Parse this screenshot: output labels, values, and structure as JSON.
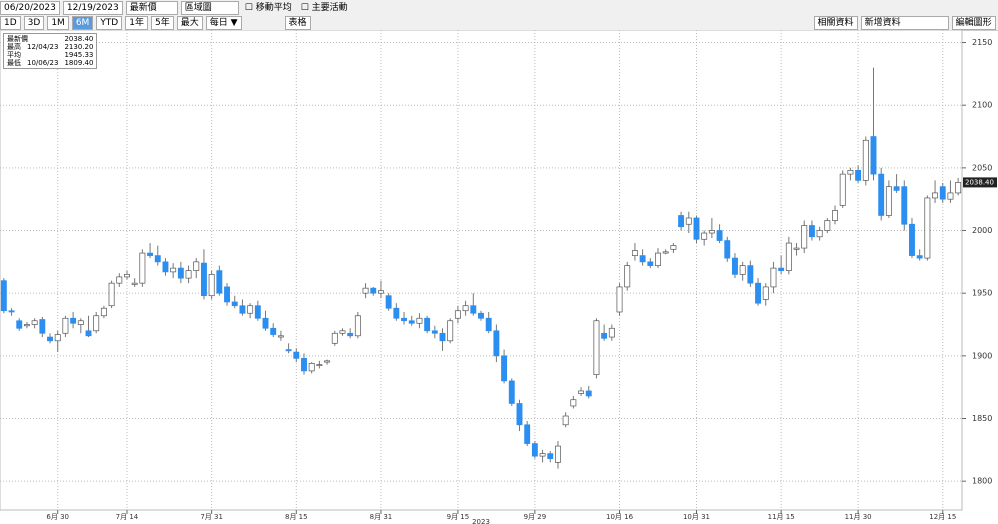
{
  "toolbar": {
    "start_date": "06/20/2023",
    "end_date": "12/19/2023",
    "price_type": "最新價",
    "chart_style": "區域圖",
    "moving_average": "移動平均",
    "main_events": "主要活動",
    "periods": [
      "1D",
      "3D",
      "1M",
      "6M",
      "YTD",
      "1年",
      "5年",
      "最大"
    ],
    "frequency": "每日 ▼",
    "table": "表格",
    "related": "相關資料",
    "add_data": "新增資料",
    "edit_chart": "編輯圖形"
  },
  "chart_data": {
    "type": "candlestick",
    "info_box": [
      [
        "最新價",
        "",
        "2038.40"
      ],
      [
        "最高",
        "12/04/23",
        "2130.20"
      ],
      [
        "平均",
        "",
        "1945.33"
      ],
      [
        "最低",
        "10/06/23",
        "1809.40"
      ]
    ],
    "last_price_label": "2038.40",
    "year_label": "2023",
    "up_color": "#ffffff",
    "down_color": "#2b8ef0",
    "edge_color": "#555555",
    "xlim": [
      -0.5,
      124.5
    ],
    "xticks": [
      {
        "value": 7,
        "label": "6月 30"
      },
      {
        "value": 16,
        "label": "7月 14"
      },
      {
        "value": 27,
        "label": "7月 31"
      },
      {
        "value": 38,
        "label": "8月 15"
      },
      {
        "value": 49,
        "label": "8月 31"
      },
      {
        "value": 59,
        "label": "9月 15"
      },
      {
        "value": 69,
        "label": "9月 29"
      },
      {
        "value": 80,
        "label": "10月 16"
      },
      {
        "value": 90,
        "label": "10月 31"
      },
      {
        "value": 101,
        "label": "11月 15"
      },
      {
        "value": 111,
        "label": "11月 30"
      },
      {
        "value": 122,
        "label": "12月 15"
      }
    ],
    "ylim": [
      1777,
      2160
    ],
    "yticks": [
      1800,
      1850,
      1900,
      1950,
      2000,
      2050,
      2100,
      2150
    ],
    "grid": true,
    "open": [
      1960,
      1936,
      1928,
      1924,
      1925,
      1929,
      1915,
      1912,
      1918,
      1930,
      1925,
      1920,
      1920,
      1932,
      1940,
      1958,
      1963,
      1957,
      1958,
      1982,
      1980,
      1975,
      1967,
      1970,
      1962,
      1968,
      1974,
      1948,
      1968,
      1955,
      1943,
      1940,
      1934,
      1940,
      1930,
      1922,
      1915,
      1905,
      1903,
      1898,
      1888,
      1893,
      1895,
      1910,
      1918,
      1918,
      1916,
      1950,
      1954,
      1950,
      1948,
      1938,
      1930,
      1928,
      1926,
      1930,
      1920,
      1918,
      1912,
      1930,
      1936,
      1940,
      1934,
      1930,
      1920,
      1900,
      1880,
      1862,
      1845,
      1830,
      1820,
      1822,
      1815,
      1845,
      1860,
      1870,
      1872,
      1885,
      1918,
      1915,
      1935,
      1955,
      1980,
      1980,
      1975,
      1972,
      1982,
      1985,
      2012,
      2005,
      2010,
      1993,
      1998,
      2000,
      1992,
      1978,
      1965,
      1972,
      1958,
      1945,
      1955,
      1970,
      1968,
      1985,
      1986,
      2004,
      1995,
      2000,
      2008,
      2020,
      2045,
      2048,
      2040,
      2075,
      2045,
      2012,
      2035,
      2035,
      2005,
      1980,
      1978,
      2026,
      2035,
      2025,
      2030
    ],
    "high": [
      1962,
      1938,
      1930,
      1927,
      1930,
      1931,
      1918,
      1920,
      1932,
      1935,
      1930,
      1932,
      1935,
      1940,
      1960,
      1966,
      1968,
      1962,
      1985,
      1990,
      1988,
      1978,
      1974,
      1975,
      1972,
      1978,
      1985,
      1968,
      1972,
      1958,
      1948,
      1945,
      1942,
      1944,
      1936,
      1926,
      1920,
      1910,
      1906,
      1902,
      1895,
      1896,
      1897,
      1920,
      1922,
      1922,
      1935,
      1958,
      1955,
      1960,
      1950,
      1942,
      1935,
      1932,
      1934,
      1932,
      1924,
      1922,
      1930,
      1940,
      1944,
      1950,
      1936,
      1935,
      1925,
      1905,
      1882,
      1865,
      1848,
      1832,
      1825,
      1824,
      1832,
      1855,
      1868,
      1875,
      1876,
      1930,
      1925,
      1925,
      1958,
      1975,
      1990,
      1985,
      1978,
      1986,
      1985,
      1990,
      2015,
      2015,
      2012,
      2000,
      2010,
      2005,
      1995,
      1982,
      1975,
      1976,
      1962,
      1958,
      1975,
      1980,
      1995,
      1990,
      2008,
      2008,
      2003,
      2010,
      2020,
      2048,
      2050,
      2052,
      2075,
      2130,
      2050,
      2040,
      2045,
      2040,
      2010,
      1985,
      2028,
      2040,
      2038,
      2040,
      2042
    ],
    "low": [
      1934,
      1932,
      1920,
      1922,
      1922,
      1915,
      1910,
      1903,
      1915,
      1922,
      1918,
      1915,
      1918,
      1930,
      1938,
      1955,
      1961,
      1955,
      1955,
      1978,
      1972,
      1964,
      1962,
      1958,
      1958,
      1962,
      1945,
      1945,
      1948,
      1940,
      1938,
      1932,
      1930,
      1928,
      1920,
      1915,
      1912,
      1902,
      1895,
      1885,
      1886,
      1890,
      1893,
      1908,
      1916,
      1914,
      1914,
      1946,
      1948,
      1946,
      1936,
      1928,
      1925,
      1924,
      1922,
      1918,
      1914,
      1904,
      1910,
      1926,
      1932,
      1932,
      1928,
      1918,
      1895,
      1878,
      1860,
      1840,
      1828,
      1818,
      1815,
      1815,
      1810,
      1843,
      1858,
      1868,
      1866,
      1882,
      1912,
      1912,
      1932,
      1952,
      1976,
      1972,
      1970,
      1970,
      1981,
      1982,
      2000,
      1998,
      1990,
      1988,
      1994,
      1990,
      1975,
      1962,
      1960,
      1955,
      1940,
      1940,
      1950,
      1965,
      1965,
      1980,
      1982,
      1992,
      1992,
      1998,
      2005,
      2018,
      2040,
      2038,
      2036,
      2040,
      2008,
      2010,
      2030,
      2000,
      1978,
      1976,
      1976,
      2022,
      2022,
      2022,
      2028
    ],
    "close": [
      1936,
      1935,
      1922,
      1925,
      1928,
      1918,
      1912,
      1917,
      1930,
      1926,
      1928,
      1916,
      1932,
      1938,
      1958,
      1963,
      1965,
      1958,
      1982,
      1980,
      1975,
      1967,
      1970,
      1962,
      1968,
      1975,
      1948,
      1965,
      1950,
      1943,
      1940,
      1934,
      1940,
      1930,
      1922,
      1917,
      1916,
      1904,
      1898,
      1888,
      1894,
      1893,
      1896,
      1918,
      1920,
      1916,
      1932,
      1954,
      1950,
      1952,
      1938,
      1930,
      1928,
      1926,
      1930,
      1920,
      1918,
      1912,
      1928,
      1936,
      1940,
      1934,
      1930,
      1920,
      1900,
      1880,
      1862,
      1845,
      1830,
      1820,
      1822,
      1818,
      1828,
      1852,
      1865,
      1872,
      1868,
      1928,
      1914,
      1922,
      1955,
      1972,
      1984,
      1975,
      1972,
      1982,
      1983,
      1988,
      2003,
      2010,
      1993,
      1998,
      2000,
      1992,
      1978,
      1965,
      1972,
      1958,
      1942,
      1955,
      1970,
      1968,
      1990,
      1986,
      2004,
      1995,
      2000,
      2008,
      2016,
      2045,
      2048,
      2040,
      2072,
      2045,
      2012,
      2035,
      2032,
      2005,
      1980,
      1978,
      2026,
      2030,
      2025,
      2030,
      2038.4
    ]
  }
}
